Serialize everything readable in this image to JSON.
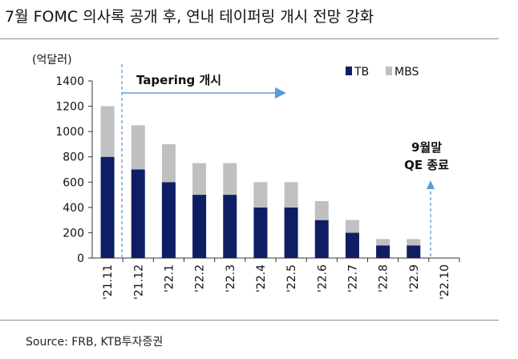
{
  "title": "7월 FOMC 의사록 공개 후, 연내 테이퍼링 개시 전망 강화",
  "source": "Source: FRB, KTB투자증권",
  "colors": {
    "tb": "#0f1e64",
    "mbs": "#c0c0c0",
    "arrow": "#5b9bd5"
  },
  "chart_data": {
    "type": "bar",
    "stacked": true,
    "unit": "(억달러)",
    "categories": [
      "'21.11",
      "'21.12",
      "'22.1",
      "'22.2",
      "'22.3",
      "'22.4",
      "'22.5",
      "'22.6",
      "'22.7",
      "'22.8",
      "'22.9",
      "'22.10"
    ],
    "series": [
      {
        "name": "TB",
        "color": "#0f1e64",
        "values": [
          800,
          700,
          600,
          500,
          500,
          400,
          400,
          300,
          200,
          100,
          100,
          0
        ]
      },
      {
        "name": "MBS",
        "color": "#c0c0c0",
        "values": [
          400,
          350,
          300,
          250,
          250,
          200,
          200,
          150,
          100,
          50,
          50,
          0
        ]
      }
    ],
    "ylim": [
      0,
      1400
    ],
    "yticks": [
      0,
      200,
      400,
      600,
      800,
      1000,
      1200,
      1400
    ],
    "legend": "top-right",
    "annotations": {
      "tapering": "Tapering 개시",
      "qe_end_line1": "9월말",
      "qe_end_line2": "QE 종료"
    }
  }
}
